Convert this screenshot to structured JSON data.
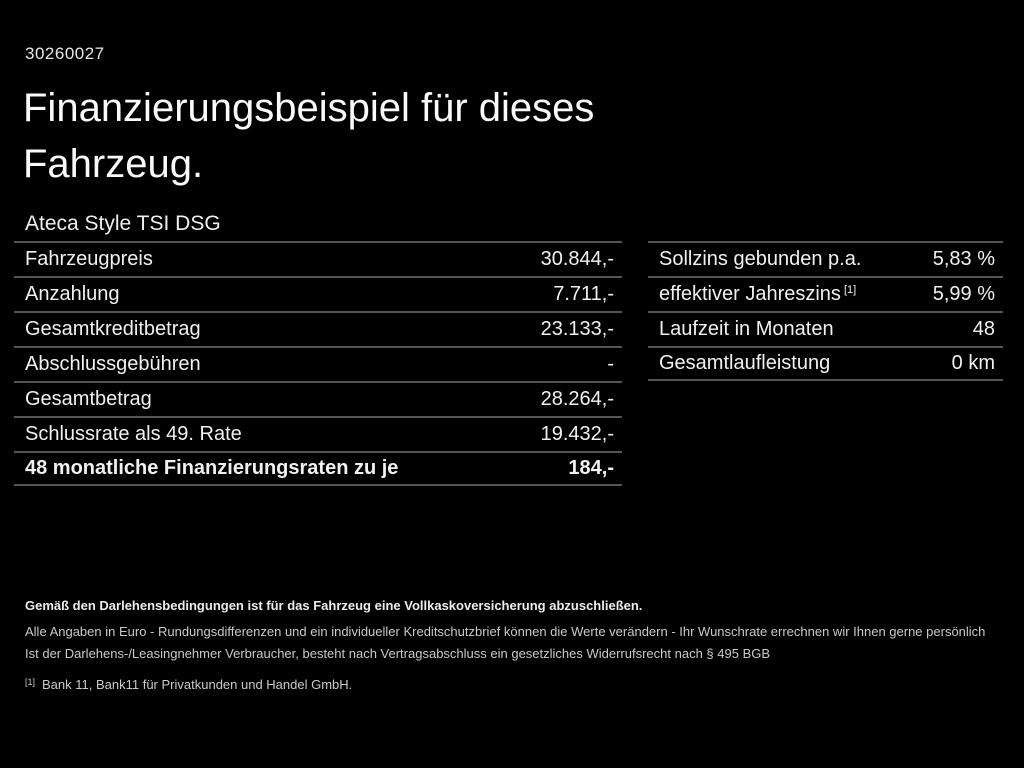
{
  "colors": {
    "background": "#000000",
    "text": "#f2f2f2",
    "divider": "#545454",
    "footnote_text": "#c9c9c9"
  },
  "header": {
    "offer_id": "30260027",
    "title_line1": "Finanzierungsbeispiel für dieses",
    "title_line2": "Fahrzeug.",
    "vehicle_model": "Ateca Style TSI DSG"
  },
  "financing_table": {
    "rows": [
      {
        "label": "Fahrzeugpreis",
        "value": "30.844,-"
      },
      {
        "label": "Anzahlung",
        "value": "7.711,-"
      },
      {
        "label": "Gesamtkreditbetrag",
        "value": "23.133,-"
      },
      {
        "label": "Abschlussgebühren",
        "value": "-"
      },
      {
        "label": "Gesamtbetrag",
        "value": "28.264,-"
      },
      {
        "label": "Schlussrate als 49. Rate",
        "value": "19.432,-"
      },
      {
        "label": "48 monatliche Finanzierungsraten zu je",
        "value": "184,-",
        "bold": true
      }
    ]
  },
  "terms_table": {
    "rows": [
      {
        "label": "Sollzins gebunden p.a.",
        "value": "5,83 %"
      },
      {
        "label": "effektiver Jahreszins",
        "label_sup": "[1]",
        "value": "5,99 %"
      },
      {
        "label": "Laufzeit in Monaten",
        "value": "48"
      },
      {
        "label": "Gesamtlaufleistung",
        "value": "0 km"
      }
    ]
  },
  "footnotes": {
    "insurance": "Gemäß den Darlehensbedingungen ist für das Fahrzeug eine Vollkaskoversicherung abzuschließen.",
    "disclaimer": "Alle Angaben in Euro - Rundungsdifferenzen und ein individueller Kreditschutzbrief können die Werte verändern - Ihr Wunschrate errechnen wir Ihnen gerne persönlich",
    "withdrawal": "Ist der Darlehens-/Leasingnehmer Verbraucher, besteht nach Vertragsabschluss ein gesetzliches Widerrufsrecht nach § 495 BGB",
    "bank_marker": "[1]",
    "bank": "Bank 11, Bank11 für Privatkunden und Handel GmbH."
  }
}
